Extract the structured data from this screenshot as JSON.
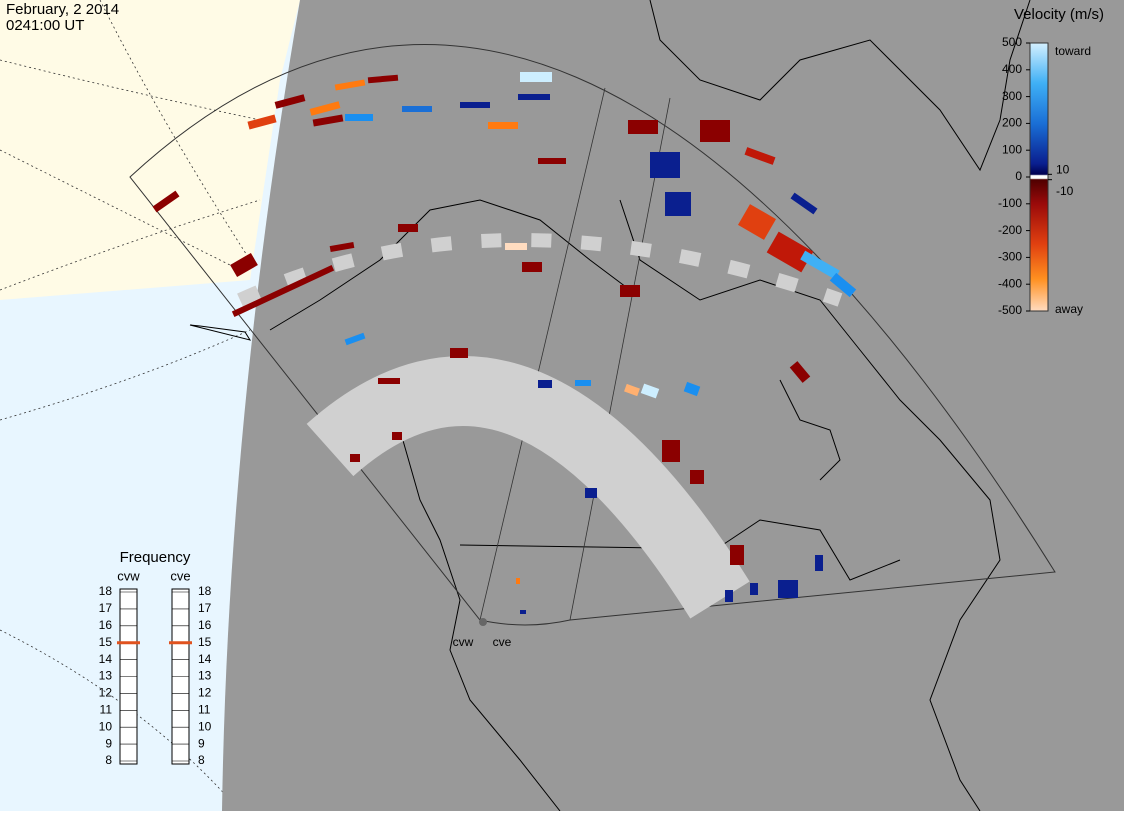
{
  "header": {
    "date": "February, 2 2014",
    "time": "0241:00 UT"
  },
  "velocity_scale": {
    "title": "Velocity (m/s)",
    "range": [
      -500,
      500
    ],
    "ticks": [
      500,
      400,
      300,
      200,
      100,
      0,
      -100,
      -200,
      -300,
      -400,
      -500
    ],
    "small_ticks": [
      10,
      -10
    ],
    "toward_label": "toward",
    "away_label": "away"
  },
  "frequency": {
    "title": "Frequency",
    "range": [
      8,
      18
    ],
    "ticks": [
      18,
      17,
      16,
      15,
      14,
      13,
      12,
      11,
      10,
      9,
      8
    ],
    "radars": [
      {
        "name": "cvw",
        "value": 15,
        "color": "#e0521e"
      },
      {
        "name": "cve",
        "value": 15,
        "color": "#e0521e"
      }
    ]
  },
  "sites": [
    "cvw",
    "cve"
  ]
}
